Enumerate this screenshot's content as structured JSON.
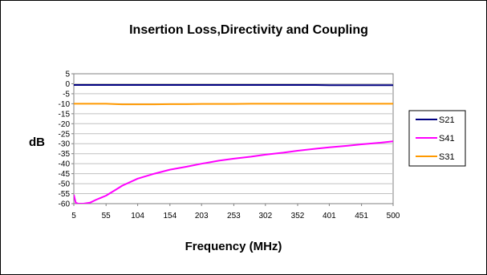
{
  "chart_data": {
    "type": "line",
    "title": "Insertion Loss,Directivity and Coupling",
    "xlabel": "Frequency (MHz)",
    "ylabel": "dB",
    "xlim": [
      5,
      500
    ],
    "ylim": [
      -60,
      5
    ],
    "x_ticks": [
      "5",
      "55",
      "104",
      "154",
      "203",
      "253",
      "302",
      "352",
      "401",
      "451",
      "500"
    ],
    "y_ticks": [
      "5",
      "0",
      "-5",
      "-10",
      "-15",
      "-20",
      "-25",
      "-30",
      "-35",
      "-40",
      "-45",
      "-50",
      "-55",
      "-60"
    ],
    "grid": "horizontal",
    "legend_position": "right",
    "x": [
      5,
      8,
      12,
      16,
      20,
      30,
      40,
      55,
      70,
      80,
      104,
      130,
      154,
      180,
      203,
      230,
      253,
      280,
      302,
      330,
      352,
      380,
      401,
      430,
      451,
      480,
      500
    ],
    "series": [
      {
        "name": "S21",
        "color": "#000080",
        "values": [
          -0.6,
          -0.6,
          -0.6,
          -0.6,
          -0.6,
          -0.6,
          -0.6,
          -0.6,
          -0.6,
          -0.6,
          -0.6,
          -0.6,
          -0.6,
          -0.6,
          -0.6,
          -0.6,
          -0.6,
          -0.6,
          -0.6,
          -0.6,
          -0.6,
          -0.6,
          -0.7,
          -0.7,
          -0.7,
          -0.7,
          -0.7
        ]
      },
      {
        "name": "S41",
        "color": "#ff00ff",
        "values": [
          -55.5,
          -59.5,
          -60,
          -60,
          -60,
          -59.5,
          -58,
          -56,
          -53,
          -51,
          -47.5,
          -45,
          -43,
          -41.5,
          -40,
          -38.5,
          -37.5,
          -36.5,
          -35.5,
          -34.5,
          -33.5,
          -32.5,
          -31.8,
          -31,
          -30.3,
          -29.5,
          -28.8
        ]
      },
      {
        "name": "S31",
        "color": "#ff9900",
        "values": [
          -10,
          -10,
          -10,
          -10,
          -10,
          -10,
          -10,
          -10,
          -10.2,
          -10.3,
          -10.3,
          -10.3,
          -10.2,
          -10.2,
          -10.1,
          -10.1,
          -10.1,
          -10,
          -10,
          -10,
          -10,
          -10,
          -10,
          -10,
          -10,
          -10,
          -10
        ]
      }
    ]
  }
}
